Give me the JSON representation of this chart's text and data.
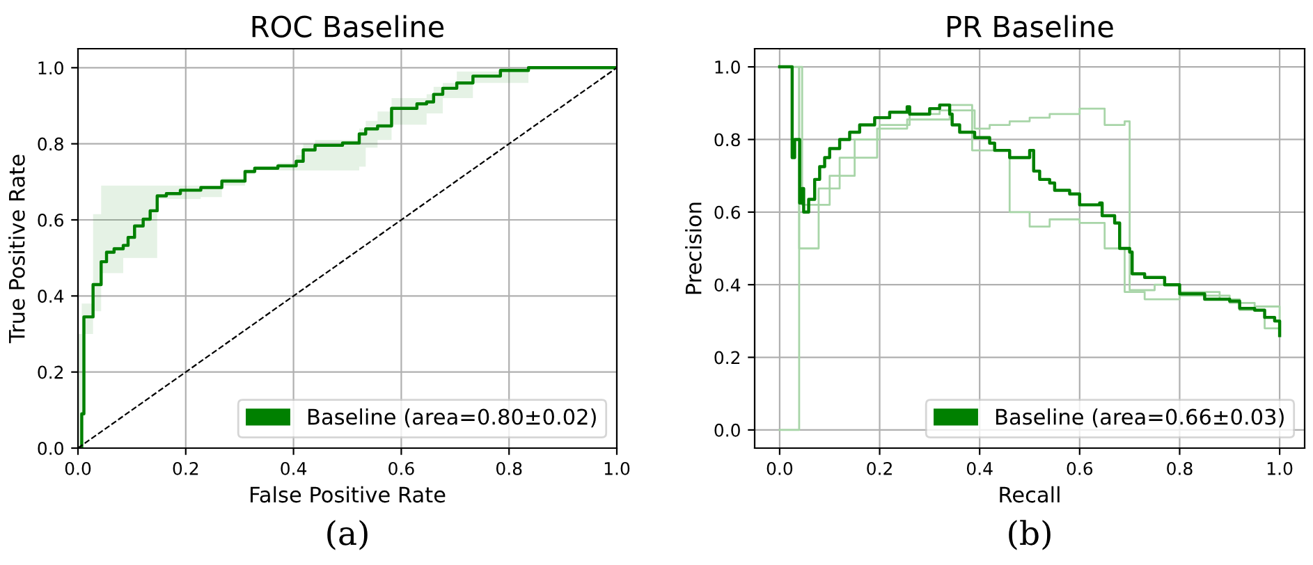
{
  "chart_data": [
    {
      "type": "step",
      "title": "ROC Baseline",
      "xlabel": "False Positive Rate",
      "ylabel": "True Positive Rate",
      "annotations": [
        "(a)"
      ],
      "xlim": [
        0,
        1
      ],
      "ylim": [
        0,
        1.05
      ],
      "xticks": [
        {
          "value": 0,
          "label": "0.0"
        },
        {
          "value": 0.2,
          "label": "0.2"
        },
        {
          "value": 0.4,
          "label": "0.4"
        },
        {
          "value": 0.6,
          "label": "0.6"
        },
        {
          "value": 0.8,
          "label": "0.8"
        },
        {
          "value": 1,
          "label": "1.0"
        }
      ],
      "yticks": [
        {
          "value": 0,
          "label": "0.0"
        },
        {
          "value": 0.2,
          "label": "0.2"
        },
        {
          "value": 0.4,
          "label": "0.4"
        },
        {
          "value": 0.6,
          "label": "0.6"
        },
        {
          "value": 0.8,
          "label": "0.8"
        },
        {
          "value": 1,
          "label": "1.0"
        }
      ],
      "grid": true,
      "legend": "bottom right",
      "marker": "none",
      "series": [
        {
          "name": "Baseline (area=0.80±0.02)",
          "color": "#008000",
          "x": [
            0,
            0.007,
            0.011,
            0.028,
            0.043,
            0.053,
            0.067,
            0.084,
            0.093,
            0.105,
            0.121,
            0.134,
            0.147,
            0.164,
            0.19,
            0.228,
            0.267,
            0.31,
            0.328,
            0.371,
            0.405,
            0.418,
            0.44,
            0.491,
            0.522,
            0.534,
            0.556,
            0.582,
            0.621,
            0.629,
            0.647,
            0.66,
            0.677,
            0.703,
            0.733,
            0.784,
            0.836,
            1.0
          ],
          "values": [
            0,
            0.09,
            0.345,
            0.43,
            0.49,
            0.515,
            0.524,
            0.533,
            0.554,
            0.584,
            0.602,
            0.624,
            0.663,
            0.669,
            0.678,
            0.685,
            0.702,
            0.727,
            0.736,
            0.742,
            0.754,
            0.784,
            0.796,
            0.802,
            0.826,
            0.839,
            0.847,
            0.893,
            0.893,
            0.905,
            0.91,
            0.93,
            0.946,
            0.96,
            0.978,
            0.993,
            1.0,
            1.0
          ],
          "upper": [
            0.3,
            0.38,
            0.38,
            0.615,
            0.69,
            0.69,
            0.69,
            0.69,
            0.69,
            0.69,
            0.69,
            0.69,
            0.69,
            0.69,
            0.69,
            0.69,
            0.71,
            0.73,
            0.74,
            0.75,
            0.77,
            0.8,
            0.81,
            0.81,
            0.84,
            0.86,
            0.885,
            0.92,
            0.92,
            0.92,
            0.93,
            0.95,
            0.96,
            0.99,
            0.99,
            1.0,
            1.0,
            1.0
          ],
          "lower": [
            0,
            0.09,
            0.3,
            0.36,
            0.46,
            0.46,
            0.46,
            0.5,
            0.5,
            0.5,
            0.5,
            0.5,
            0.655,
            0.655,
            0.655,
            0.66,
            0.69,
            0.72,
            0.73,
            0.73,
            0.73,
            0.73,
            0.73,
            0.73,
            0.74,
            0.79,
            0.81,
            0.85,
            0.85,
            0.85,
            0.88,
            0.88,
            0.92,
            0.92,
            0.96,
            0.96,
            1.0,
            1.0
          ]
        },
        {
          "type": "line",
          "color": "#000000",
          "line_style": "dashed",
          "x": [
            0,
            1
          ],
          "values": [
            0,
            1
          ]
        }
      ]
    },
    {
      "type": "step",
      "title": "PR Baseline",
      "xlabel": "Recall",
      "ylabel": "Precision",
      "annotations": [
        "(b)"
      ],
      "xlim": [
        -0.05,
        1.05
      ],
      "ylim": [
        -0.05,
        1.05
      ],
      "xticks": [
        {
          "value": 0,
          "label": "0.0"
        },
        {
          "value": 0.2,
          "label": "0.2"
        },
        {
          "value": 0.4,
          "label": "0.4"
        },
        {
          "value": 0.6,
          "label": "0.6"
        },
        {
          "value": 0.8,
          "label": "0.8"
        },
        {
          "value": 1,
          "label": "1.0"
        }
      ],
      "yticks": [
        {
          "value": 0,
          "label": "0.0"
        },
        {
          "value": 0.2,
          "label": "0.2"
        },
        {
          "value": 0.4,
          "label": "0.4"
        },
        {
          "value": 0.6,
          "label": "0.6"
        },
        {
          "value": 0.8,
          "label": "0.8"
        },
        {
          "value": 1,
          "label": "1.0"
        }
      ],
      "grid": true,
      "legend": "bottom right",
      "marker": "none",
      "series": [
        {
          "color": "#a8d5a8",
          "x": [
            0,
            0.039,
            0.078,
            0.12,
            0.195,
            0.255,
            0.34,
            0.385,
            0.46,
            0.5,
            0.54,
            0.6,
            0.65,
            0.69,
            0.73,
            0.8,
            0.88,
            0.92,
            0.97,
            1.0
          ],
          "values": [
            1.0,
            0.5,
            0.665,
            0.75,
            0.83,
            0.855,
            0.895,
            0.77,
            0.6,
            0.56,
            0.58,
            0.57,
            0.5,
            0.38,
            0.36,
            0.37,
            0.36,
            0.33,
            0.28,
            0.28
          ]
        },
        {
          "color": "#a8d5a8",
          "x": [
            0,
            0.039,
            0.045,
            0.1,
            0.15,
            0.2,
            0.26,
            0.32,
            0.39,
            0.42,
            0.46,
            0.5,
            0.54,
            0.6,
            0.65,
            0.69,
            0.7,
            0.75,
            0.8,
            0.88,
            0.9,
            0.95,
            1.0
          ],
          "values": [
            0,
            1.0,
            0.62,
            0.7,
            0.8,
            0.84,
            0.87,
            0.88,
            0.83,
            0.84,
            0.85,
            0.86,
            0.87,
            0.885,
            0.84,
            0.85,
            0.385,
            0.4,
            0.38,
            0.37,
            0.35,
            0.34,
            0.3
          ]
        },
        {
          "name": "Baseline (area=0.66±0.03)",
          "color": "#008000",
          "x": [
            0,
            0.025,
            0.03,
            0.04,
            0.045,
            0.048,
            0.058,
            0.07,
            0.08,
            0.09,
            0.1,
            0.12,
            0.14,
            0.16,
            0.19,
            0.22,
            0.255,
            0.26,
            0.3,
            0.32,
            0.34,
            0.345,
            0.36,
            0.39,
            0.42,
            0.43,
            0.46,
            0.5,
            0.508,
            0.52,
            0.54,
            0.55,
            0.58,
            0.6,
            0.64,
            0.645,
            0.67,
            0.68,
            0.7,
            0.705,
            0.73,
            0.77,
            0.8,
            0.85,
            0.9,
            0.92,
            0.95,
            0.97,
            0.99,
            1.0
          ],
          "values": [
            1.0,
            0.75,
            0.8,
            0.625,
            0.665,
            0.6,
            0.635,
            0.69,
            0.725,
            0.75,
            0.775,
            0.8,
            0.82,
            0.84,
            0.86,
            0.875,
            0.89,
            0.87,
            0.885,
            0.895,
            0.87,
            0.84,
            0.82,
            0.805,
            0.79,
            0.77,
            0.75,
            0.77,
            0.713,
            0.69,
            0.68,
            0.66,
            0.65,
            0.62,
            0.625,
            0.59,
            0.57,
            0.5,
            0.49,
            0.43,
            0.42,
            0.4,
            0.375,
            0.36,
            0.355,
            0.335,
            0.33,
            0.31,
            0.3,
            0.26
          ]
        }
      ]
    }
  ]
}
